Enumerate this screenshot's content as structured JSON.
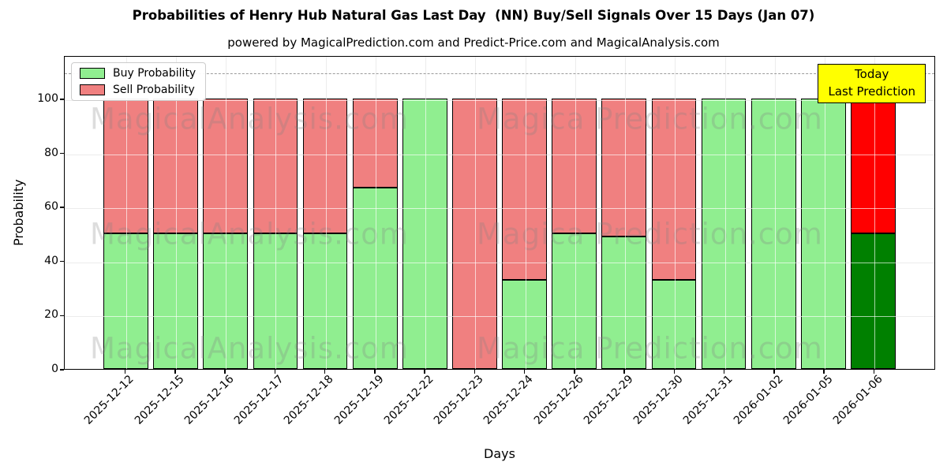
{
  "title": "Probabilities of Henry Hub Natural Gas Last Day  (NN) Buy/Sell Signals Over 15 Days (Jan 07)",
  "subtitle": "powered by MagicalPrediction.com and Predict-Price.com and MagicalAnalysis.com",
  "legend": {
    "buy_label": "Buy Probability",
    "sell_label": "Sell Probability"
  },
  "annotation": {
    "line1": "Today",
    "line2": "Last Prediction"
  },
  "watermarks": {
    "left_text": "MagicalAnalysis.com",
    "right_text": "Magica Prediction.com"
  },
  "axes": {
    "ylabel": "Probability",
    "xlabel": "Days",
    "yticks": [
      0,
      20,
      40,
      60,
      80,
      100
    ],
    "ymax": 116,
    "dashed_line_y": 110
  },
  "colors": {
    "buy": "#90ee90",
    "sell": "#f08080",
    "today_buy": "#008000",
    "today_sell": "#ff0000",
    "annotation_bg": "#ffff00",
    "grid_back": "#c9c9c9",
    "grid_front": "rgba(255,255,255,0.65)",
    "watermark": "rgba(128,128,128,0.27)"
  },
  "chart_data": {
    "type": "bar",
    "stacked": true,
    "title": "Probabilities of Henry Hub Natural Gas Last Day  (NN) Buy/Sell Signals Over 15 Days (Jan 07)",
    "xlabel": "Days",
    "ylabel": "Probability",
    "ylim": [
      0,
      116
    ],
    "grid": true,
    "legend_position": "upper left",
    "categories": [
      "2025-12-12",
      "2025-12-15",
      "2025-12-16",
      "2025-12-17",
      "2025-12-18",
      "2025-12-19",
      "2025-12-22",
      "2025-12-23",
      "2025-12-24",
      "2025-12-26",
      "2025-12-29",
      "2025-12-30",
      "2025-12-31",
      "2026-01-02",
      "2026-01-05",
      "2026-01-06"
    ],
    "series": [
      {
        "name": "Buy Probability",
        "values": [
          50,
          50,
          50,
          50,
          50,
          67,
          100,
          0,
          33,
          50,
          49,
          33,
          100,
          100,
          100,
          50
        ]
      },
      {
        "name": "Sell Probability",
        "values": [
          50,
          50,
          50,
          50,
          50,
          33,
          0,
          100,
          67,
          50,
          51,
          67,
          0,
          0,
          0,
          50
        ]
      }
    ],
    "today_index": 15,
    "dashed_reference_line": 110
  }
}
